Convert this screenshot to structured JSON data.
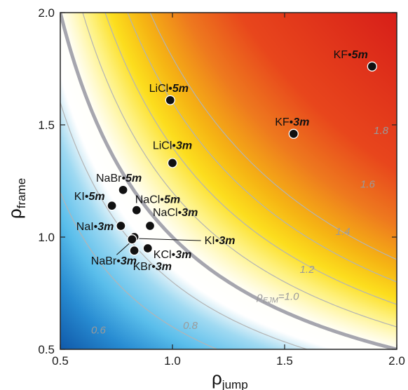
{
  "chart_data": {
    "type": "contour-scatter",
    "xlabel": {
      "main": "ρ",
      "sub": "jump"
    },
    "ylabel": {
      "main": "ρ",
      "sub": "frame"
    },
    "xlim": [
      0.5,
      2.0
    ],
    "ylim": [
      0.5,
      2.0
    ],
    "xticks": [
      "0.5",
      "1.0",
      "1.5",
      "2.0"
    ],
    "yticks": [
      "0.5",
      "1.0",
      "1.5",
      "2.0"
    ],
    "colorscale": {
      "low": "#1a64b4",
      "mid": "#ffffff",
      "high": "#e02818"
    },
    "contours": [
      {
        "level": 0.6,
        "label": "0.6",
        "emphasized": false
      },
      {
        "level": 0.8,
        "label": "0.8",
        "emphasized": false
      },
      {
        "level": 1.0,
        "label": "ρ_EJM=1.0",
        "label_main": "ρ",
        "label_sub": "EJM",
        "label_rest": "=1.0",
        "emphasized": true
      },
      {
        "level": 1.2,
        "label": "1.2",
        "emphasized": false
      },
      {
        "level": 1.4,
        "label": "1.4",
        "emphasized": false
      },
      {
        "level": 1.6,
        "label": "1.6",
        "emphasized": false
      },
      {
        "level": 1.8,
        "label": "1.8",
        "emphasized": false
      }
    ],
    "points": [
      {
        "salt": "KF",
        "conc": "5m",
        "x": 1.89,
        "y": 1.76
      },
      {
        "salt": "KF",
        "conc": "3m",
        "x": 1.54,
        "y": 1.46
      },
      {
        "salt": "LiCl",
        "conc": "5m",
        "x": 0.99,
        "y": 1.61
      },
      {
        "salt": "LiCl",
        "conc": "3m",
        "x": 1.0,
        "y": 1.33
      },
      {
        "salt": "NaBr",
        "conc": "5m",
        "x": 0.78,
        "y": 1.21
      },
      {
        "salt": "KI",
        "conc": "5m",
        "x": 0.73,
        "y": 1.14
      },
      {
        "salt": "NaCl",
        "conc": "5m",
        "x": 0.84,
        "y": 1.12
      },
      {
        "salt": "NaI",
        "conc": "3m",
        "x": 0.77,
        "y": 1.05
      },
      {
        "salt": "NaCl",
        "conc": "3m",
        "x": 0.9,
        "y": 1.05
      },
      {
        "salt": "KI",
        "conc": "3m",
        "x": 0.83,
        "y": 1.0
      },
      {
        "salt": "NaBr",
        "conc": "3m",
        "x": 0.82,
        "y": 0.99
      },
      {
        "salt": "KBr",
        "conc": "3m",
        "x": 0.83,
        "y": 0.94
      },
      {
        "salt": "KCl",
        "conc": "3m",
        "x": 0.89,
        "y": 0.95
      }
    ]
  }
}
